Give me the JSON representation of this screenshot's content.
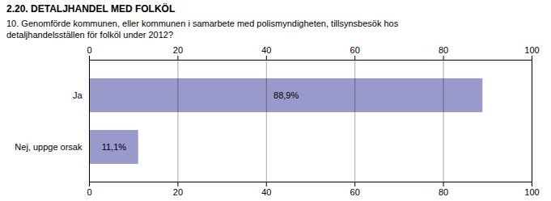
{
  "chart_data": {
    "type": "bar",
    "orientation": "horizontal",
    "title": "2.20. DETALJHANDEL MED FOLKÖL",
    "subtitle": "10. Genomförde kommunen, eller kommunen i samarbete med polismyndigheten, tillsynsbesök hos\ndetaljhandelsställen för folköl under 2012?",
    "categories": [
      "Ja",
      "Nej, uppge orsak"
    ],
    "values": [
      88.9,
      11.1
    ],
    "value_labels": [
      "88,9%",
      "11,1%"
    ],
    "data_labels": true,
    "color": "#9999cc",
    "xlim": [
      0,
      100
    ],
    "xticks": [
      0,
      20,
      40,
      60,
      80,
      100
    ],
    "grid": true
  }
}
